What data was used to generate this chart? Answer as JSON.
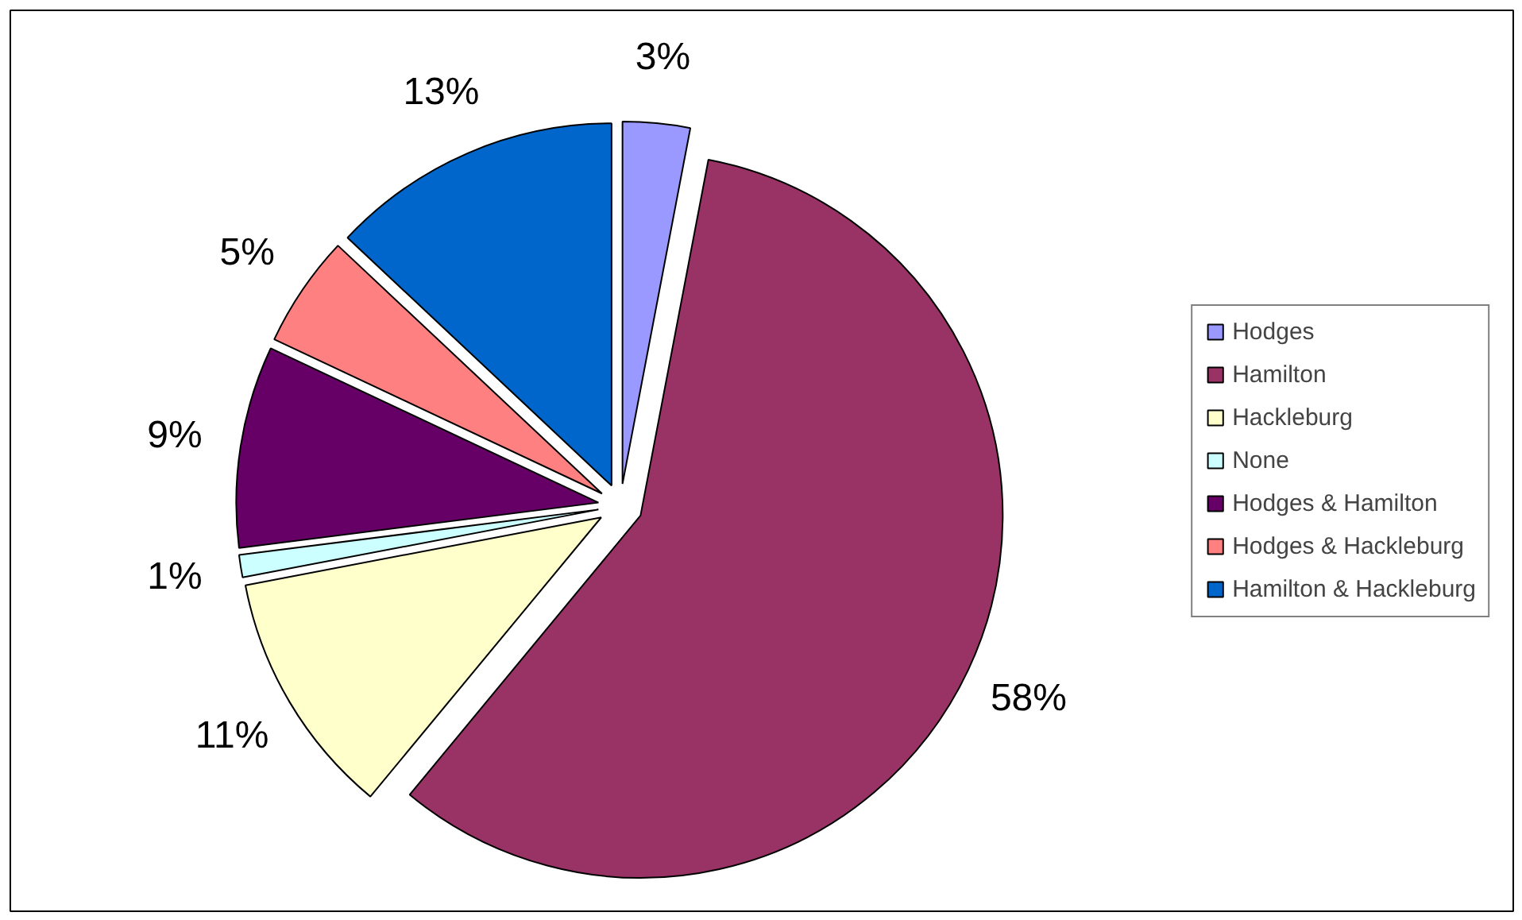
{
  "chart_data": {
    "type": "pie",
    "categories": [
      "Hodges",
      "Hamilton",
      "Hackleburg",
      "None",
      "Hodges & Hamilton",
      "Hodges & Hackleburg",
      "Hamilton & Hackleburg"
    ],
    "values": [
      3,
      58,
      11,
      1,
      9,
      5,
      13
    ],
    "colors": [
      "#9999ff",
      "#993366",
      "#ffffcc",
      "#ccffff",
      "#660066",
      "#ff8080",
      "#0066cc"
    ],
    "value_labels": [
      "3%",
      "58%",
      "11%",
      "1%",
      "9%",
      "5%",
      "13%"
    ],
    "legend": "right"
  }
}
